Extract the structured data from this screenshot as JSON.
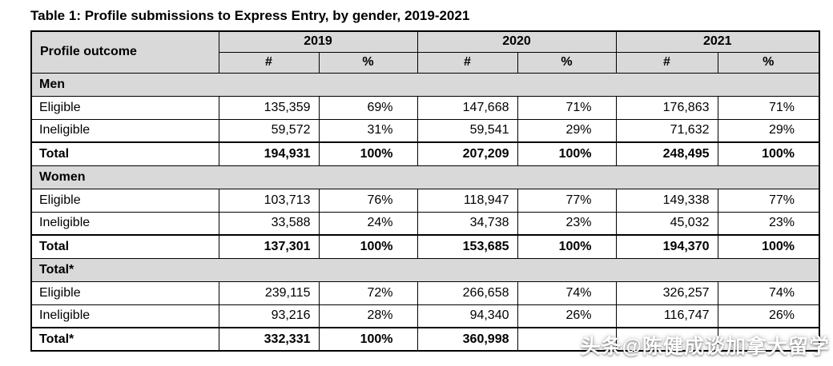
{
  "chart_data": {
    "type": "table",
    "title": "Table 1: Profile submissions to Express Entry, by gender, 2019-2021",
    "corner_header": "Profile outcome",
    "year_headers": [
      "2019",
      "2020",
      "2021"
    ],
    "sub_headers": [
      "#",
      "%"
    ],
    "sections": [
      {
        "label": "Men",
        "rows": [
          {
            "label": "Eligible",
            "bold": false,
            "values": [
              "135,359",
              "69%",
              "147,668",
              "71%",
              "176,863",
              "71%"
            ]
          },
          {
            "label": "Ineligible",
            "bold": false,
            "values": [
              "59,572",
              "31%",
              "59,541",
              "29%",
              "71,632",
              "29%"
            ]
          },
          {
            "label": "Total",
            "bold": true,
            "values": [
              "194,931",
              "100%",
              "207,209",
              "100%",
              "248,495",
              "100%"
            ]
          }
        ]
      },
      {
        "label": "Women",
        "rows": [
          {
            "label": "Eligible",
            "bold": false,
            "values": [
              "103,713",
              "76%",
              "118,947",
              "77%",
              "149,338",
              "77%"
            ]
          },
          {
            "label": "Ineligible",
            "bold": false,
            "values": [
              "33,588",
              "24%",
              "34,738",
              "23%",
              "45,032",
              "23%"
            ]
          },
          {
            "label": "Total",
            "bold": true,
            "values": [
              "137,301",
              "100%",
              "153,685",
              "100%",
              "194,370",
              "100%"
            ]
          }
        ]
      },
      {
        "label": "Total*",
        "rows": [
          {
            "label": "Eligible",
            "bold": false,
            "values": [
              "239,115",
              "72%",
              "266,658",
              "74%",
              "326,257",
              "74%"
            ]
          },
          {
            "label": "Ineligible",
            "bold": false,
            "values": [
              "93,216",
              "28%",
              "94,340",
              "26%",
              "116,747",
              "26%"
            ]
          },
          {
            "label": "Total*",
            "bold": true,
            "values": [
              "332,331",
              "100%",
              "360,998",
              "",
              "",
              ""
            ]
          }
        ]
      }
    ]
  },
  "watermark": "头条@陈健成谈加拿大留学",
  "colors": {
    "header_bg": "#d9d9d9",
    "border": "#000000",
    "watermark_text": "#ffffff",
    "page_bg": "#ffffff"
  }
}
